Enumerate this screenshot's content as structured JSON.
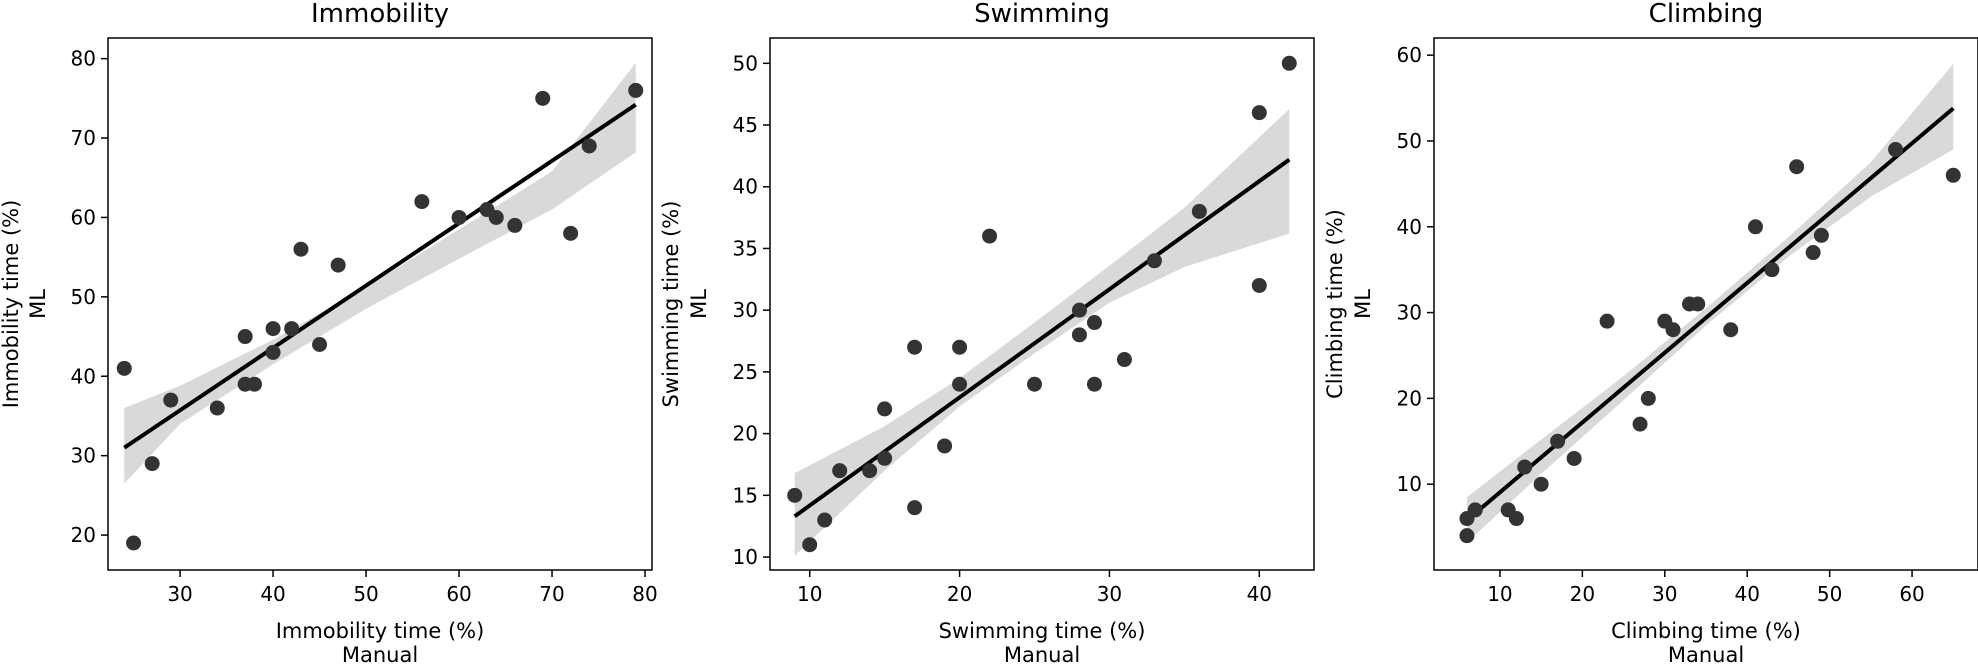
{
  "chart_data": [
    {
      "type": "scatter",
      "title": "Immobility",
      "xlabel": "Immobility time (%)",
      "xlabel2": "Manual",
      "ylabel": "Immobility time (%)",
      "ylabel2": "ML",
      "xlim": [
        22.25,
        80.75
      ],
      "ylim": [
        15.6,
        82.6
      ],
      "xticks": [
        30,
        40,
        50,
        60,
        70,
        80
      ],
      "yticks": [
        20,
        30,
        40,
        50,
        60,
        70,
        80
      ],
      "points": [
        [
          24,
          41
        ],
        [
          25,
          19
        ],
        [
          27,
          29
        ],
        [
          29,
          37
        ],
        [
          34,
          36
        ],
        [
          37,
          45
        ],
        [
          37,
          39
        ],
        [
          38,
          39
        ],
        [
          40,
          46
        ],
        [
          40,
          43
        ],
        [
          42,
          46
        ],
        [
          43,
          56
        ],
        [
          45,
          44
        ],
        [
          47,
          54
        ],
        [
          56,
          62
        ],
        [
          60,
          60
        ],
        [
          63,
          61
        ],
        [
          64,
          60
        ],
        [
          66,
          59
        ],
        [
          69,
          75
        ],
        [
          72,
          58
        ],
        [
          74,
          69
        ],
        [
          79,
          76
        ]
      ],
      "fit": {
        "x": [
          24,
          79
        ],
        "y": [
          31.0,
          74.2
        ]
      },
      "ci": {
        "x": [
          24,
          30,
          40,
          50,
          60,
          70,
          79
        ],
        "lower": [
          26.5,
          34.0,
          41.5,
          48.5,
          54.8,
          61.0,
          68.2
        ],
        "upper": [
          36.0,
          38.8,
          44.6,
          51.2,
          58.5,
          65.8,
          79.5
        ]
      },
      "point_color": "#333333",
      "line_color": "#000000",
      "band_color": "#d9d9d9"
    },
    {
      "type": "scatter",
      "title": "Swimming",
      "xlabel": "Swimming time (%)",
      "xlabel2": "Manual",
      "ylabel": "Swimming time (%)",
      "ylabel2": "ML",
      "xlim": [
        7.35,
        43.65
      ],
      "ylim": [
        8.95,
        52.05
      ],
      "xticks": [
        10,
        20,
        30,
        40
      ],
      "yticks": [
        10,
        15,
        20,
        25,
        30,
        35,
        40,
        45,
        50
      ],
      "points": [
        [
          9,
          15
        ],
        [
          10,
          11
        ],
        [
          11,
          13
        ],
        [
          12,
          17
        ],
        [
          14,
          17
        ],
        [
          15,
          22
        ],
        [
          15,
          18
        ],
        [
          17,
          27
        ],
        [
          17,
          14
        ],
        [
          19,
          19
        ],
        [
          20,
          27
        ],
        [
          20,
          24
        ],
        [
          22,
          36
        ],
        [
          25,
          24
        ],
        [
          28,
          30
        ],
        [
          28,
          28
        ],
        [
          29,
          29
        ],
        [
          29,
          24
        ],
        [
          31,
          26
        ],
        [
          33,
          34
        ],
        [
          36,
          38
        ],
        [
          40,
          46
        ],
        [
          40,
          32
        ],
        [
          42,
          50
        ]
      ],
      "fit": {
        "x": [
          9,
          42
        ],
        "y": [
          13.3,
          42.2
        ]
      },
      "ci": {
        "x": [
          9,
          15,
          20,
          25,
          30,
          35,
          42
        ],
        "lower": [
          10.1,
          17.0,
          22.2,
          26.5,
          30.6,
          33.5,
          36.2
        ],
        "upper": [
          16.8,
          20.6,
          24.5,
          29.0,
          33.6,
          38.3,
          46.3
        ]
      },
      "point_color": "#333333",
      "line_color": "#000000",
      "band_color": "#d9d9d9"
    },
    {
      "type": "scatter",
      "title": "Climbing",
      "xlabel": "Climbing time (%)",
      "xlabel2": "Manual",
      "ylabel": "Climbing time (%)",
      "ylabel2": "ML",
      "xlim": [
        2.0,
        68.0
      ],
      "ylim": [
        0.0,
        62.0
      ],
      "xticks": [
        10,
        20,
        30,
        40,
        50,
        60
      ],
      "yticks": [
        10,
        20,
        30,
        40,
        50,
        60
      ],
      "points": [
        [
          6,
          4
        ],
        [
          6,
          6
        ],
        [
          7,
          7
        ],
        [
          11,
          7
        ],
        [
          12,
          6
        ],
        [
          13,
          12
        ],
        [
          15,
          10
        ],
        [
          17,
          15
        ],
        [
          19,
          13
        ],
        [
          23,
          29
        ],
        [
          27,
          17
        ],
        [
          28,
          20
        ],
        [
          30,
          29
        ],
        [
          31,
          28
        ],
        [
          33,
          31
        ],
        [
          34,
          31
        ],
        [
          38,
          28
        ],
        [
          41,
          40
        ],
        [
          43,
          35
        ],
        [
          46,
          47
        ],
        [
          48,
          37
        ],
        [
          49,
          39
        ],
        [
          58,
          49
        ],
        [
          65,
          46
        ]
      ],
      "fit": {
        "x": [
          6,
          65
        ],
        "y": [
          5.8,
          53.8
        ]
      },
      "ci": {
        "x": [
          6,
          15,
          25,
          35,
          45,
          55,
          65
        ],
        "lower": [
          3.2,
          11.2,
          19.8,
          28.5,
          36.5,
          43.5,
          49.0
        ],
        "upper": [
          8.5,
          15.2,
          22.6,
          30.5,
          38.8,
          47.5,
          59.0
        ]
      },
      "point_color": "#333333",
      "line_color": "#000000",
      "band_color": "#d9d9d9"
    }
  ]
}
